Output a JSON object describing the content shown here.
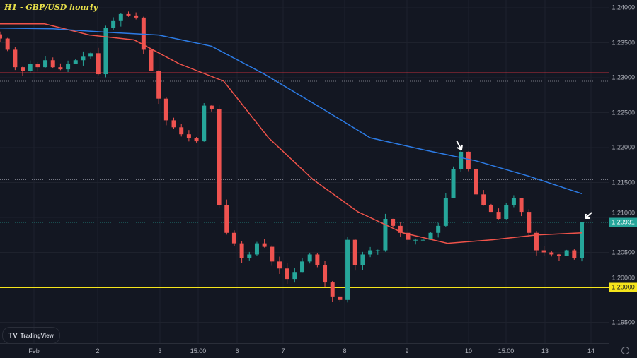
{
  "chart_title": "H1 - GBP/USD hourly",
  "branding": "TradingView",
  "colors": {
    "background": "#131722",
    "bull": "#26a69a",
    "bear": "#ef5350",
    "ma_fast": "#f0534a",
    "ma_slow": "#2c7be5",
    "support": "#f5e51b",
    "resistance": "#f23645",
    "last_price": "#26a69a"
  },
  "chart_data": {
    "type": "candlestick",
    "symbol": "GBP/USD",
    "timeframe": "hourly",
    "ylim": [
      1.1935,
      1.2411
    ],
    "y_ticks": [
      "1.24000",
      "1.23500",
      "1.23000",
      "1.22500",
      "1.22000",
      "1.21500",
      "1.21000",
      "1.20500",
      "1.20000",
      "1.19500"
    ],
    "x_ticks": [
      "Feb",
      "2",
      "3",
      "15:00",
      "6",
      "7",
      "8",
      "9",
      "10",
      "15:00",
      "13",
      "14"
    ],
    "closes": [
      1.2356,
      1.234,
      1.2315,
      1.231,
      1.232,
      1.2315,
      1.2325,
      1.2315,
      1.2312,
      1.232,
      1.2325,
      1.233,
      1.2335,
      1.2305,
      1.2371,
      1.2381,
      1.2391,
      1.2389,
      1.2386,
      1.234,
      1.231,
      1.227,
      1.2239,
      1.2229,
      1.2219,
      1.2214,
      1.2209,
      1.226,
      1.2255,
      1.2118,
      1.2078,
      1.2063,
      1.2042,
      1.2047,
      1.2063,
      1.2058,
      1.2037,
      1.2027,
      1.2012,
      1.2022,
      1.2037,
      1.2047,
      1.2032,
      1.2007,
      1.1987,
      1.1982,
      1.2068,
      1.2032,
      1.2047,
      1.2053,
      1.2053,
      1.2098,
      1.2088,
      1.2078,
      1.2068,
      1.2068,
      1.2068,
      1.2078,
      1.2088,
      1.2128,
      1.2169,
      1.2194,
      1.2169,
      1.2133,
      1.2118,
      1.2108,
      1.2098,
      1.2118,
      1.2128,
      1.2108,
      1.2078,
      1.2053,
      1.205,
      1.2047,
      1.2045,
      1.2053,
      1.2042,
      1.2093
    ],
    "ma_fast": [
      1.2377,
      1.2377,
      1.2361,
      1.2354,
      1.232,
      1.2295,
      1.2214,
      1.2154,
      1.2108,
      1.2078,
      1.2063,
      1.2068,
      1.2075,
      1.2078
    ],
    "ma_slow": [
      1.2371,
      1.237,
      1.2365,
      1.2361,
      1.2345,
      1.2305,
      1.226,
      1.2214,
      1.2197,
      1.2181,
      1.2159,
      1.2134
    ],
    "horizontal_lines": [
      {
        "price": 1.2307,
        "style": "solid",
        "color": "#f23645"
      },
      {
        "price": 1.2295,
        "style": "dotted",
        "color": "#787b86"
      },
      {
        "price": 1.2154,
        "style": "dotted",
        "color": "#787b86"
      },
      {
        "price": 1.2,
        "style": "solid",
        "color": "#f5e51b",
        "label": "1.20000"
      }
    ],
    "last_price": {
      "value": 1.20931,
      "label": "1.20931"
    },
    "annotations": [
      {
        "type": "arrow",
        "at": "swing high near 200 MA"
      },
      {
        "type": "arrow",
        "at": "last candle"
      }
    ]
  }
}
